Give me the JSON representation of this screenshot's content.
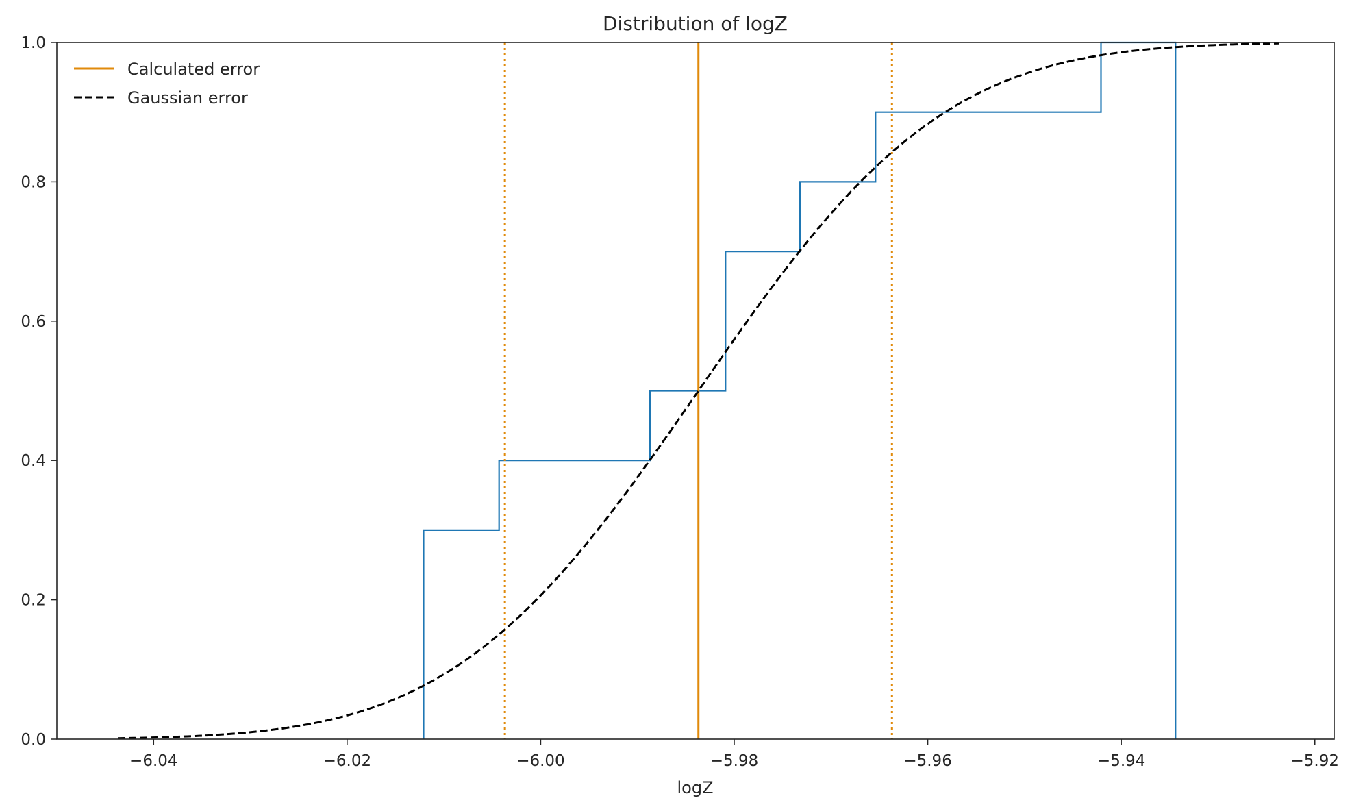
{
  "chart_data": {
    "type": "line",
    "title": "Distribution of logZ",
    "xlabel": "logZ",
    "ylabel": "",
    "xlim": [
      -6.05,
      -5.918
    ],
    "ylim": [
      0.0,
      1.0
    ],
    "xticks": [
      -6.04,
      -6.02,
      -6.0,
      -5.98,
      -5.96,
      -5.94,
      -5.92
    ],
    "xtick_labels": [
      "−6.04",
      "−6.02",
      "−6.00",
      "−5.98",
      "−5.96",
      "−5.94",
      "−5.92"
    ],
    "yticks": [
      0.0,
      0.2,
      0.4,
      0.6,
      0.8,
      1.0
    ],
    "ytick_labels": [
      "0.0",
      "0.2",
      "0.4",
      "0.6",
      "0.8",
      "1.0"
    ],
    "grid": false,
    "legend_position": "top-left",
    "legend": [
      {
        "label": "Calculated error",
        "color": "#e08a0b",
        "style": "solid"
      },
      {
        "label": "Gaussian error",
        "color": "#000000",
        "style": "dashed"
      }
    ],
    "ecdf": {
      "color": "#1f77b4",
      "x": [
        -6.0121,
        -6.0043,
        -5.9887,
        -5.9809,
        -5.9732,
        -5.9654,
        -5.9421,
        -5.9344
      ],
      "y": [
        0.3,
        0.4,
        0.5,
        0.7,
        0.8,
        0.9,
        1.0,
        0.0
      ]
    },
    "gaussian": {
      "color": "#000000",
      "mean": -5.9837,
      "sigma": 0.0199,
      "x_range": [
        -6.0437,
        -5.9237
      ]
    },
    "calculated": {
      "color": "#e08a0b",
      "center": -5.9837,
      "lower": -6.0037,
      "upper": -5.9637
    }
  }
}
